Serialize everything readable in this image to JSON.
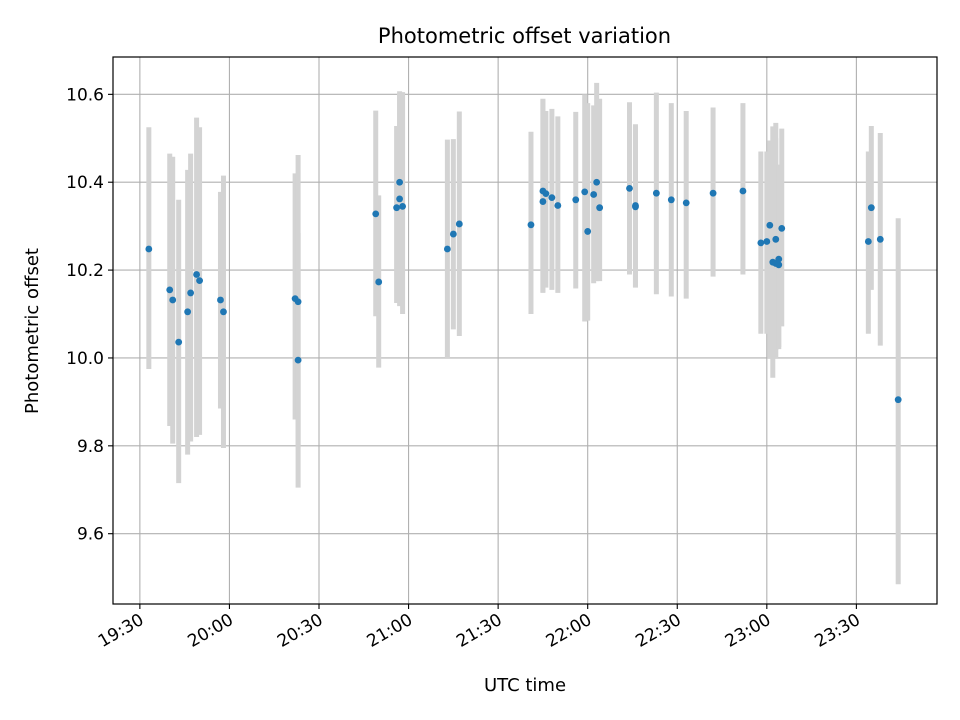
{
  "chart_data": {
    "type": "scatter",
    "title": "Photometric offset variation",
    "xlabel": "UTC time",
    "ylabel": "Photometric offset",
    "x_ticks": [
      "19:30",
      "20:00",
      "20:30",
      "21:00",
      "21:30",
      "22:00",
      "22:30",
      "23:00",
      "23:30"
    ],
    "y_ticks": [
      "9.6",
      "9.8",
      "10.0",
      "10.2",
      "10.4",
      "10.6"
    ],
    "xlim": [
      "19:21",
      "23:57"
    ],
    "ylim": [
      9.44,
      10.685
    ],
    "grid": true,
    "errorbar_color": "#d3d3d3",
    "marker_color": "#1f77b4",
    "series": [
      {
        "x": [
          "19:33",
          "19:40",
          "19:41",
          "19:43",
          "19:46",
          "19:47",
          "19:49",
          "19:50",
          "19:57",
          "19:58",
          "20:22",
          "20:23",
          "20:23",
          "20:49",
          "20:50",
          "20:56",
          "20:57",
          "20:57",
          "20:58",
          "21:13",
          "21:15",
          "21:17",
          "21:41",
          "21:45",
          "21:45",
          "21:46",
          "21:48",
          "21:50",
          "21:56",
          "21:59",
          "22:00",
          "22:02",
          "22:03",
          "22:04",
          "22:14",
          "22:16",
          "22:16",
          "22:23",
          "22:28",
          "22:33",
          "22:42",
          "22:52",
          "22:58",
          "23:00",
          "23:01",
          "23:02",
          "23:03",
          "23:03",
          "23:04",
          "23:04",
          "23:05",
          "23:34",
          "23:35",
          "23:38",
          "23:44"
        ],
        "y": [
          10.248,
          10.155,
          10.132,
          10.036,
          10.105,
          10.148,
          10.19,
          10.176,
          10.132,
          10.105,
          10.135,
          10.128,
          9.995,
          10.328,
          10.173,
          10.342,
          10.4,
          10.362,
          10.345,
          10.248,
          10.282,
          10.305,
          10.303,
          10.356,
          10.38,
          10.374,
          10.365,
          10.347,
          10.36,
          10.378,
          10.288,
          10.372,
          10.4,
          10.342,
          10.386,
          10.347,
          10.344,
          10.375,
          10.36,
          10.353,
          10.375,
          10.38,
          10.262,
          10.265,
          10.302,
          10.218,
          10.27,
          10.215,
          10.212,
          10.225,
          10.295,
          10.265,
          10.342,
          10.27,
          9.905
        ],
        "yerr_low": [
          9.975,
          9.845,
          9.805,
          9.715,
          9.78,
          9.81,
          9.82,
          9.825,
          9.885,
          9.795,
          9.86,
          9.8,
          9.705,
          10.095,
          9.978,
          10.125,
          10.18,
          10.118,
          10.1,
          10.0,
          10.065,
          10.05,
          10.1,
          10.148,
          10.15,
          10.16,
          10.155,
          10.148,
          10.158,
          10.083,
          10.085,
          10.17,
          10.175,
          10.175,
          10.19,
          10.162,
          10.16,
          10.145,
          10.14,
          10.135,
          10.185,
          10.19,
          10.055,
          10.055,
          9.998,
          9.955,
          10.018,
          10.0,
          10.02,
          10.025,
          10.072,
          10.055,
          10.155,
          10.028,
          9.485
        ],
        "yerr_high": [
          10.525,
          10.465,
          10.458,
          10.36,
          10.428,
          10.465,
          10.547,
          10.525,
          10.378,
          10.415,
          10.42,
          10.462,
          10.285,
          10.563,
          10.37,
          10.528,
          10.602,
          10.607,
          10.605,
          10.497,
          10.498,
          10.561,
          10.515,
          10.59,
          10.588,
          10.562,
          10.567,
          10.55,
          10.56,
          10.6,
          10.58,
          10.575,
          10.626,
          10.59,
          10.582,
          10.532,
          10.529,
          10.604,
          10.58,
          10.562,
          10.57,
          10.58,
          10.47,
          10.47,
          10.495,
          10.527,
          10.535,
          10.5,
          10.44,
          10.425,
          10.522,
          10.47,
          10.528,
          10.512,
          10.318
        ]
      }
    ]
  }
}
